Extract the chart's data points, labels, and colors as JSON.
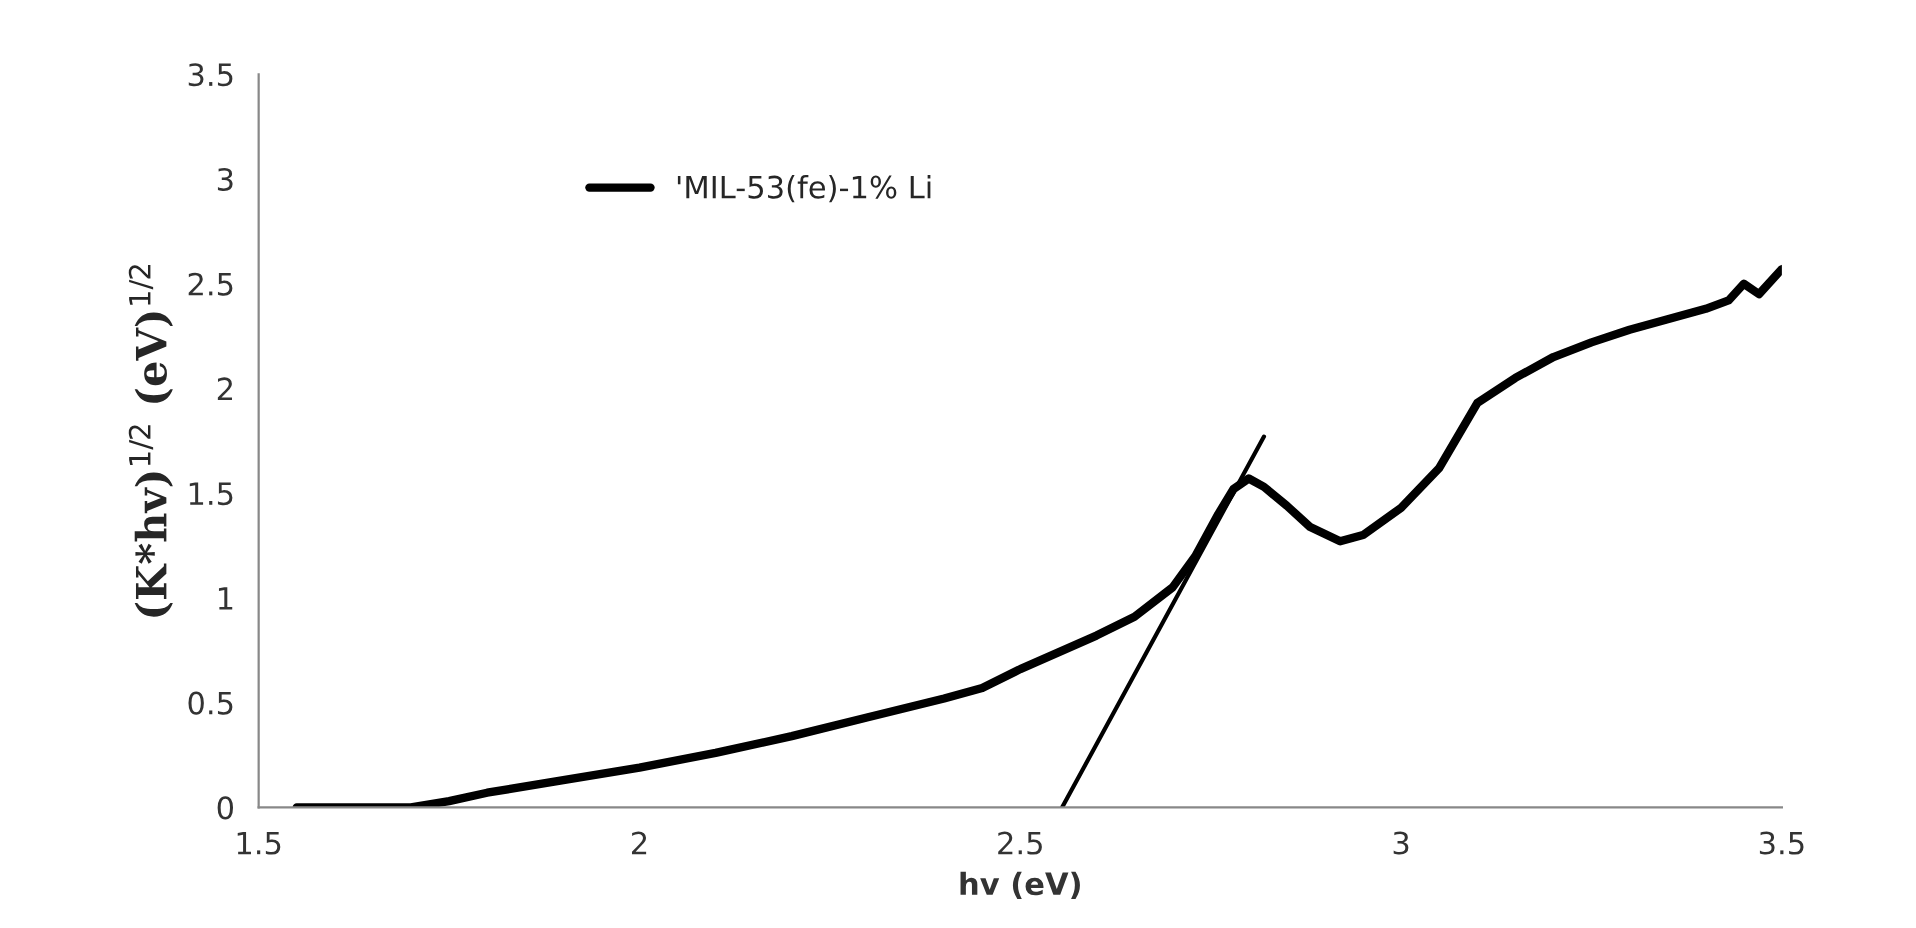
{
  "chart_data": {
    "type": "line",
    "xlabel": "hv (eV)",
    "ylabel": "(K*hv)$^{1/2}$ (eV)$^{1/2}$",
    "xlim": [
      1.5,
      3.5
    ],
    "xticks": [
      1.5,
      2,
      2.5,
      3,
      3.5
    ],
    "ylim": [
      0,
      3.5
    ],
    "yticks": [
      0,
      0.5,
      1,
      1.5,
      2,
      2.5,
      3,
      3.5
    ],
    "grid": false,
    "legend": "top",
    "series": [
      {
        "name": "'MIL-53(fe)-1% Li",
        "color": "#000000",
        "x": [
          1.55,
          1.7,
          1.75,
          1.8,
          1.9,
          2.0,
          2.1,
          2.2,
          2.3,
          2.4,
          2.45,
          2.5,
          2.55,
          2.6,
          2.65,
          2.7,
          2.73,
          2.76,
          2.78,
          2.8,
          2.82,
          2.85,
          2.88,
          2.92,
          2.95,
          3.0,
          3.05,
          3.1,
          3.15,
          3.2,
          3.25,
          3.3,
          3.35,
          3.4,
          3.43,
          3.45,
          3.47,
          3.5
        ],
        "values": [
          0,
          0,
          0.03,
          0.07,
          0.13,
          0.19,
          0.26,
          0.34,
          0.43,
          0.52,
          0.57,
          0.66,
          0.74,
          0.82,
          0.91,
          1.05,
          1.2,
          1.4,
          1.52,
          1.57,
          1.53,
          1.44,
          1.34,
          1.27,
          1.3,
          1.43,
          1.62,
          1.93,
          2.05,
          2.15,
          2.22,
          2.28,
          2.33,
          2.38,
          2.42,
          2.5,
          2.45,
          2.57
        ]
      },
      {
        "type": "line",
        "color": "#000000",
        "x": [
          2.555,
          2.82
        ],
        "values": [
          0,
          1.77
        ]
      }
    ]
  }
}
